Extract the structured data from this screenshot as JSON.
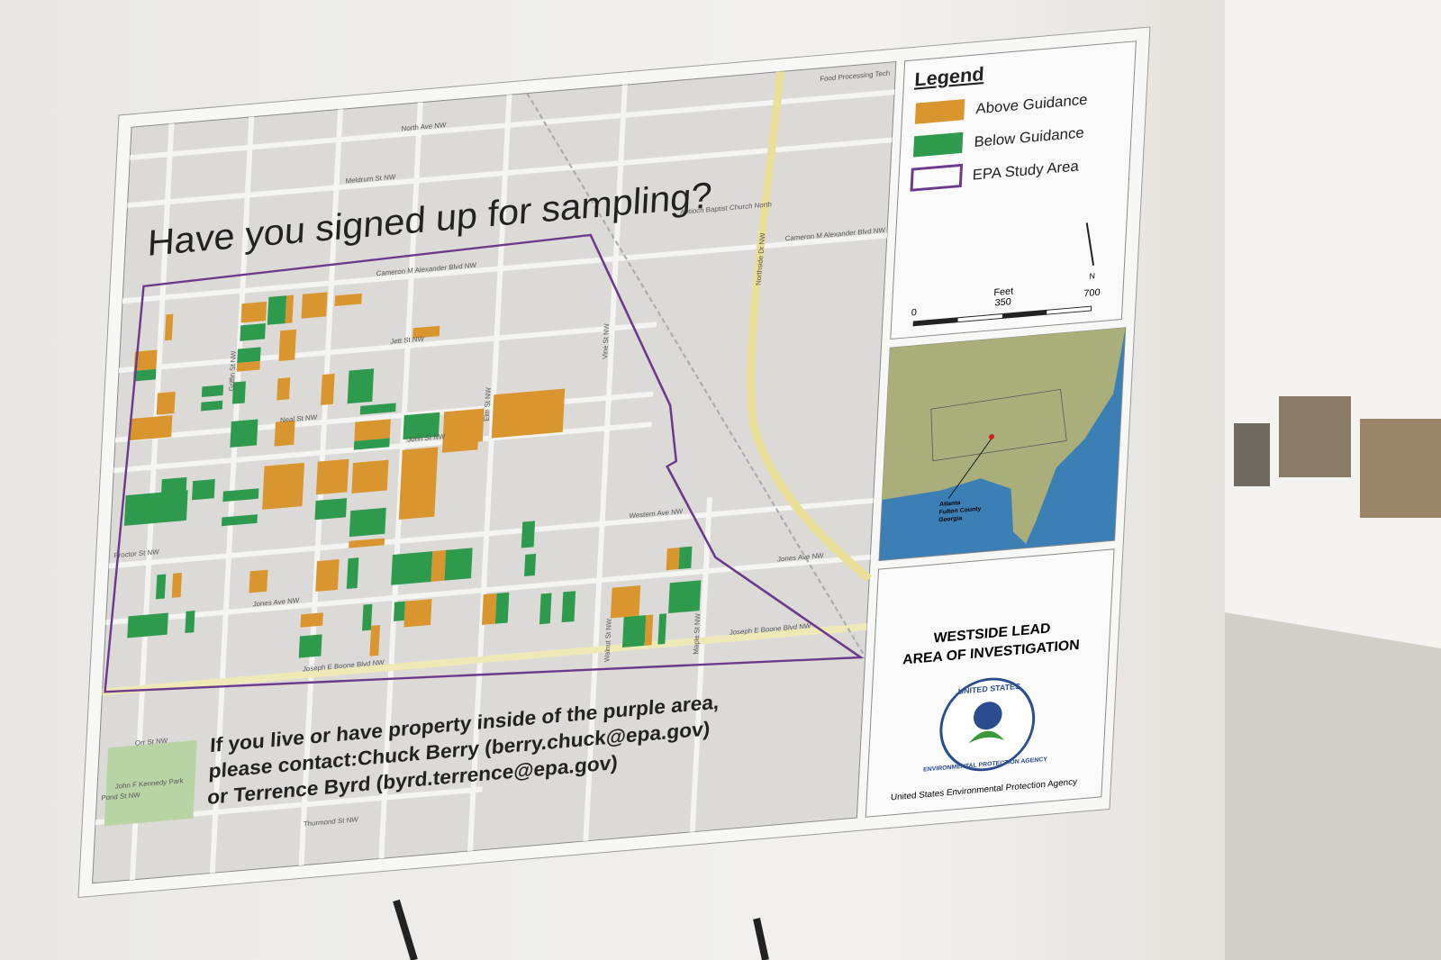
{
  "poster": {
    "headline": "Have you signed up for sampling?",
    "contact": [
      "If you live or have property inside of the purple area,",
      "please contact:Chuck Berry (berry.chuck@epa.gov)",
      "or Terrence Byrd (byrd.terrence@epa.gov)"
    ]
  },
  "legend": {
    "title": "Legend",
    "items": [
      {
        "label": "Above Guidance",
        "color": "#d9962e"
      },
      {
        "label": "Below Guidance",
        "color": "#2e9a4e"
      },
      {
        "label": "EPA Study Area",
        "color": "#6b3a8c"
      }
    ]
  },
  "scale": {
    "title": "Feet",
    "ticks": [
      "0",
      "350",
      "700"
    ],
    "north": "N"
  },
  "inset": {
    "label": [
      "Atlanta",
      "Fulton County",
      "Georgia"
    ]
  },
  "panel": {
    "title": [
      "WESTSIDE LEAD",
      "AREA OF INVESTIGATION"
    ],
    "seal_top": "UNITED STATES",
    "seal_bottom": "ENVIRONMENTAL PROTECTION AGENCY",
    "agency": "United States Environmental Protection Agency"
  },
  "streets": [
    "North Ave NW",
    "Meldrum St NW",
    "Cameron M Alexander Blvd NW",
    "Jett St NW",
    "Neal St NW",
    "John St NW",
    "Western Ave NW",
    "Jones Ave NW",
    "Joseph E Boone Blvd NW",
    "Northside Dr NW",
    "Vine St NW",
    "Elm St NW",
    "Griffin St NW",
    "Maple St NW",
    "Walnut St NW",
    "Proctor St NW",
    "Pond St NW",
    "Orr St NW",
    "Thurmond St NW"
  ],
  "places": [
    "Antioch Baptist Church North",
    "John F Kennedy Park",
    "Food Processing Tech"
  ]
}
